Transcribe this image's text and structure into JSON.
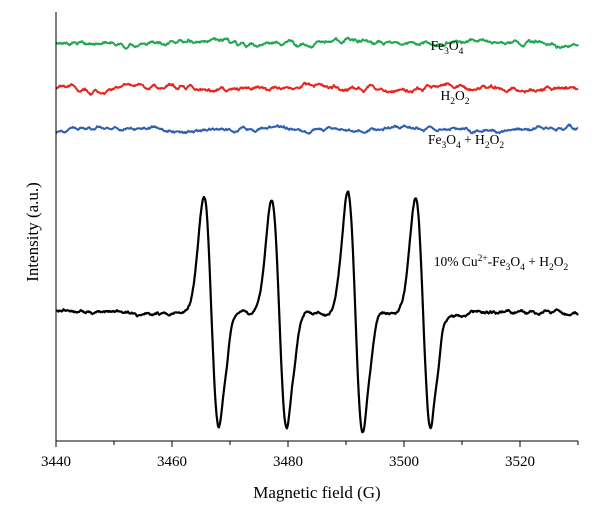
{
  "chart_data": {
    "type": "line",
    "xlabel": "Magnetic field (G)",
    "ylabel": "Intensity (a.u.)",
    "xlim": [
      3440,
      3530
    ],
    "xticks": [
      3440,
      3460,
      3480,
      3500,
      3520
    ],
    "y_ticks_shown": false,
    "grid": false,
    "legend": "none",
    "series": [
      {
        "name": "Fe3O4",
        "label_parts": [
          [
            "Fe",
            0
          ],
          [
            "3",
            -1
          ],
          [
            "O",
            0
          ],
          [
            "4",
            -1
          ]
        ],
        "color": "#1fa84f",
        "offset": 3.6,
        "noise_amplitude": 0.06,
        "peaks": []
      },
      {
        "name": "H2O2",
        "label_parts": [
          [
            "H",
            0
          ],
          [
            "2",
            -1
          ],
          [
            "O",
            0
          ],
          [
            "2",
            -1
          ]
        ],
        "color": "#e8251f",
        "offset": 3.0,
        "noise_amplitude": 0.06,
        "peaks": []
      },
      {
        "name": "Fe3O4 + H2O2",
        "label_parts": [
          [
            "Fe",
            0
          ],
          [
            "3",
            -1
          ],
          [
            "O",
            0
          ],
          [
            "4",
            -1
          ],
          [
            " + H",
            0
          ],
          [
            "2",
            -1
          ],
          [
            "O",
            0
          ],
          [
            "2",
            -1
          ]
        ],
        "color": "#2f5fb0",
        "offset": 2.45,
        "noise_amplitude": 0.05,
        "peaks": []
      },
      {
        "name": "10% Cu2+-Fe3O4 + H2O2",
        "label_parts": [
          [
            "10% Cu",
            0
          ],
          [
            "2+",
            1
          ],
          [
            "-Fe",
            0
          ],
          [
            "3",
            -1
          ],
          [
            "O",
            0
          ],
          [
            "4",
            -1
          ],
          [
            " + H",
            0
          ],
          [
            "2",
            -1
          ],
          [
            "O",
            0
          ],
          [
            "2",
            -1
          ]
        ],
        "color": "#000000",
        "offset": 0.0,
        "noise_amplitude": 0.05,
        "peaks": [
          {
            "center": 3466.8,
            "amplitude": 1.55
          },
          {
            "center": 3478.5,
            "amplitude": 1.55
          },
          {
            "center": 3491.6,
            "amplitude": 1.62
          },
          {
            "center": 3503.3,
            "amplitude": 1.55
          }
        ]
      }
    ]
  }
}
